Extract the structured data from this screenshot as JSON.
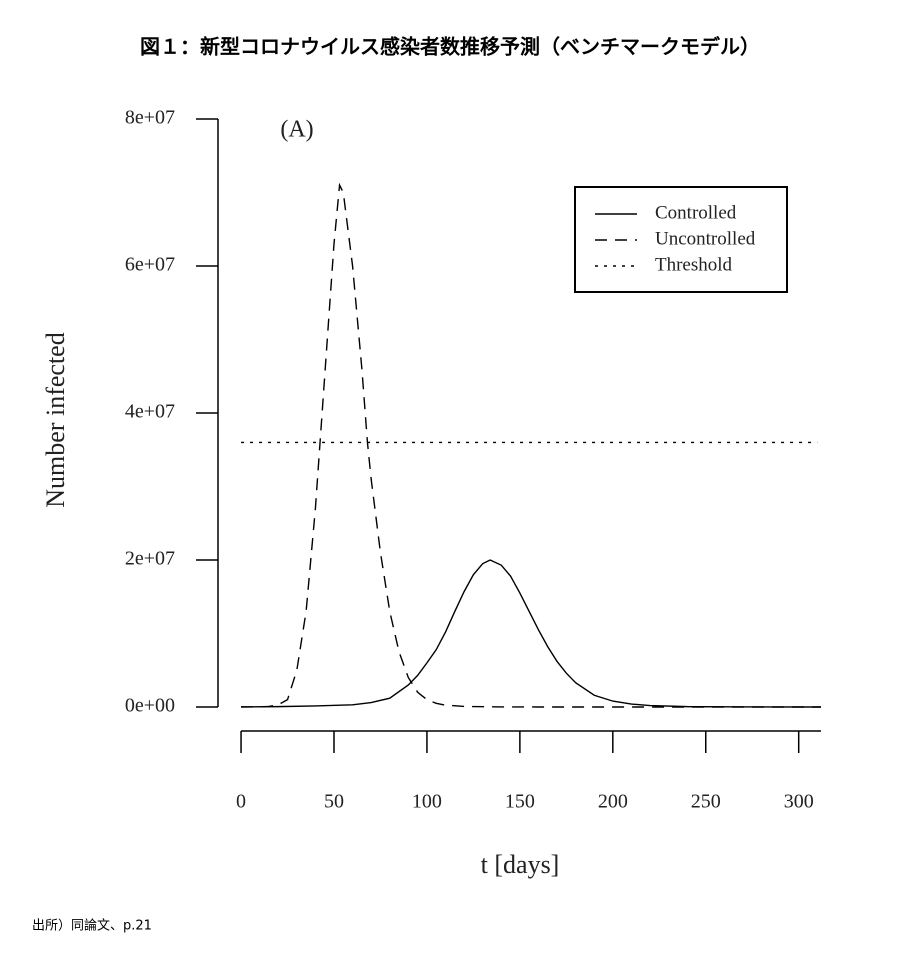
{
  "title": "図１：新型コロナウイルス感染者数推移予測（ベンチマークモデル）",
  "source": "出所）同論文、p.21",
  "chart_data": {
    "type": "line",
    "annotation": "(A)",
    "x_label": "t [days]",
    "y_label": "Number infected",
    "xlim": [
      -12.4,
      312
    ],
    "ylim": [
      0,
      80000000
    ],
    "xticks": [
      0,
      50,
      100,
      150,
      200,
      250,
      300
    ],
    "yticks": [
      {
        "value": 0,
        "label": "0e+00"
      },
      {
        "value": 20000000,
        "label": "2e+07"
      },
      {
        "value": 40000000,
        "label": "4e+07"
      },
      {
        "value": 60000000,
        "label": "6e+07"
      },
      {
        "value": 80000000,
        "label": "8e+07"
      }
    ],
    "legend": "top-right",
    "series": [
      {
        "name": "Controlled",
        "color": "#000000",
        "dash": "solid",
        "x": [
          0,
          20,
          40,
          60,
          70,
          80,
          90,
          95,
          100,
          105,
          110,
          115,
          120,
          125,
          130,
          134,
          140,
          145,
          150,
          155,
          160,
          165,
          170,
          175,
          180,
          190,
          200,
          210,
          220,
          240,
          260,
          312
        ],
        "values": [
          20000,
          50000,
          150000,
          300000,
          600000,
          1200000,
          3000000,
          4300000,
          6000000,
          7800000,
          10200000,
          13000000,
          15700000,
          18000000,
          19500000,
          20000000,
          19300000,
          17800000,
          15500000,
          13000000,
          10500000,
          8200000,
          6200000,
          4600000,
          3300000,
          1600000,
          800000,
          400000,
          200000,
          50000,
          20000,
          0
        ]
      },
      {
        "name": "Uncontrolled",
        "color": "#000000",
        "dash": "dashed",
        "x": [
          0,
          10,
          15,
          20,
          25,
          30,
          35,
          40,
          45,
          50,
          53,
          55,
          60,
          65,
          68,
          70,
          75,
          80,
          85,
          90,
          95,
          100,
          105,
          110,
          120,
          140,
          160,
          200,
          250,
          312
        ],
        "values": [
          0,
          20000,
          80000,
          300000,
          1000000,
          5000000,
          13000000,
          27000000,
          45000000,
          63000000,
          71000000,
          70000000,
          60000000,
          46000000,
          36000000,
          31000000,
          21000000,
          13000000,
          7500000,
          4000000,
          2000000,
          1000000,
          500000,
          250000,
          80000,
          10000,
          0,
          0,
          0,
          0
        ]
      },
      {
        "name": "Threshold",
        "color": "#000000",
        "dash": "dotted",
        "x": [
          0,
          310
        ],
        "values": [
          36000000,
          36000000
        ]
      }
    ]
  }
}
